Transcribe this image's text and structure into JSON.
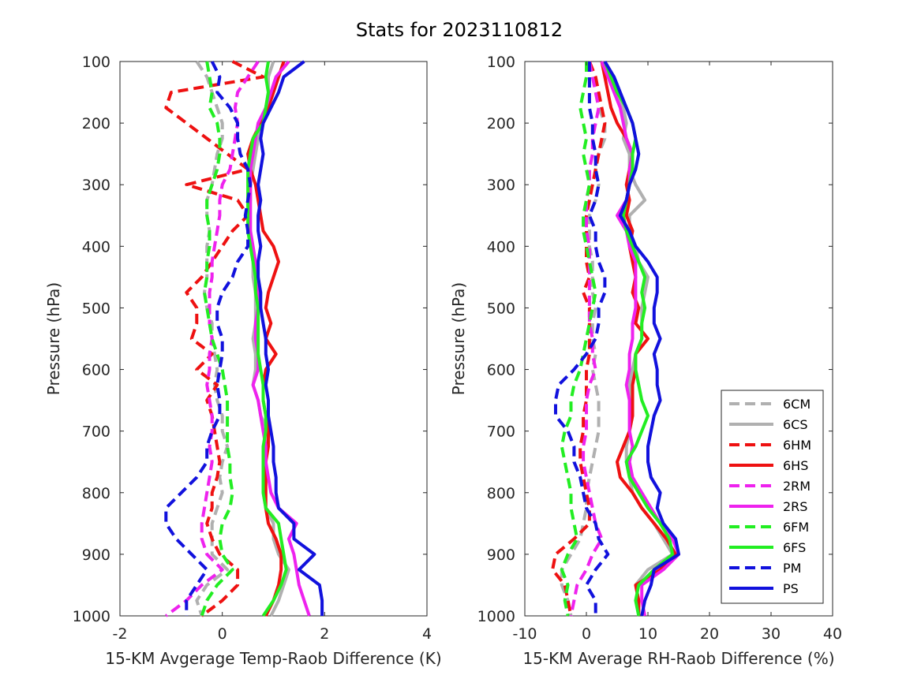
{
  "figure_title": "Stats for 2023110812",
  "legend_colors": {
    "gray": "#b0b0b0",
    "red": "#ee1111",
    "magenta": "#ee22ee",
    "green": "#22ee22",
    "blue": "#1111dd"
  },
  "chart_data": [
    {
      "type": "line",
      "xlabel": "15-KM Avgerage Temp-Raob Difference (K)",
      "ylabel": "Pressure (hPa)",
      "xlim": [
        -2,
        4
      ],
      "ylim": [
        1000,
        100
      ],
      "y_reversed": true,
      "xticks": [
        -2,
        0,
        2,
        4
      ],
      "yticks": [
        100,
        200,
        300,
        400,
        500,
        600,
        700,
        800,
        900,
        1000
      ],
      "grid": false,
      "y": [
        100,
        125,
        150,
        175,
        200,
        225,
        250,
        275,
        300,
        325,
        350,
        375,
        400,
        425,
        450,
        475,
        500,
        525,
        550,
        575,
        600,
        625,
        650,
        675,
        700,
        725,
        750,
        775,
        800,
        825,
        850,
        875,
        900,
        925,
        950,
        975,
        1000
      ],
      "series": [
        {
          "name": "6CM",
          "color": "#b0b0b0",
          "dash": true,
          "x": [
            -0.5,
            -0.3,
            -0.2,
            -0.1,
            0.0,
            0.0,
            -0.1,
            -0.15,
            -0.2,
            -0.3,
            -0.3,
            -0.25,
            -0.3,
            -0.3,
            -0.3,
            -0.35,
            -0.3,
            -0.2,
            -0.2,
            -0.15,
            -0.1,
            -0.15,
            -0.1,
            0.0,
            0.0,
            0.1,
            0.0,
            -0.05,
            0.0,
            -0.1,
            -0.2,
            -0.2,
            -0.2,
            0.1,
            -0.3,
            -0.5,
            -0.4
          ]
        },
        {
          "name": "6CS",
          "color": "#b0b0b0",
          "dash": false,
          "x": [
            1.0,
            0.9,
            0.9,
            0.85,
            0.8,
            0.7,
            0.65,
            0.6,
            0.55,
            0.55,
            0.5,
            0.55,
            0.55,
            0.6,
            0.6,
            0.65,
            0.65,
            0.65,
            0.6,
            0.65,
            0.65,
            0.6,
            0.7,
            0.75,
            0.9,
            0.85,
            0.85,
            0.8,
            0.8,
            0.85,
            1.0,
            1.0,
            1.1,
            1.3,
            1.2,
            1.1,
            0.95
          ]
        },
        {
          "name": "6HM",
          "color": "#ee1111",
          "dash": true,
          "x": [
            0.2,
            0.8,
            -1.0,
            -1.1,
            -0.7,
            -0.3,
            0.1,
            0.5,
            -0.7,
            0.3,
            0.5,
            0.2,
            0.0,
            -0.2,
            -0.4,
            -0.7,
            -0.5,
            -0.5,
            -0.6,
            -0.2,
            -0.5,
            -0.1,
            -0.3,
            -0.2,
            -0.15,
            -0.1,
            -0.05,
            -0.1,
            -0.2,
            -0.2,
            -0.3,
            -0.2,
            -0.05,
            0.3,
            0.3,
            0.0,
            -0.4
          ]
        },
        {
          "name": "6HS",
          "color": "#ee1111",
          "dash": false,
          "x": [
            1.2,
            1.1,
            1.0,
            0.9,
            0.75,
            0.6,
            0.5,
            0.55,
            0.65,
            0.7,
            0.75,
            0.8,
            1.0,
            1.1,
            1.0,
            0.9,
            0.85,
            0.95,
            0.85,
            1.05,
            0.85,
            0.8,
            0.8,
            0.85,
            0.9,
            0.9,
            0.85,
            0.85,
            0.85,
            0.85,
            0.9,
            1.05,
            1.15,
            1.15,
            1.1,
            1.0,
            0.85
          ]
        },
        {
          "name": "2RM",
          "color": "#ee22ee",
          "dash": true,
          "x": [
            0.7,
            0.5,
            0.3,
            0.25,
            0.3,
            0.25,
            0.2,
            0.15,
            0.0,
            -0.05,
            -0.05,
            -0.1,
            -0.15,
            -0.2,
            -0.2,
            -0.25,
            -0.25,
            -0.25,
            -0.2,
            -0.25,
            -0.25,
            -0.3,
            -0.25,
            -0.2,
            -0.2,
            -0.25,
            -0.2,
            -0.25,
            -0.3,
            -0.35,
            -0.4,
            -0.4,
            -0.3,
            0.0,
            -0.4,
            -0.7,
            -1.1
          ]
        },
        {
          "name": "2RS",
          "color": "#ee22ee",
          "dash": false,
          "x": [
            1.3,
            1.05,
            0.95,
            0.85,
            0.7,
            0.65,
            0.6,
            0.55,
            0.55,
            0.55,
            0.55,
            0.55,
            0.6,
            0.65,
            0.7,
            0.7,
            0.7,
            0.65,
            0.65,
            0.7,
            0.7,
            0.6,
            0.7,
            0.75,
            0.8,
            0.85,
            0.85,
            0.9,
            0.95,
            1.1,
            1.45,
            1.3,
            1.4,
            1.45,
            1.5,
            1.6,
            1.7
          ]
        },
        {
          "name": "6FM",
          "color": "#22ee22",
          "dash": true,
          "x": [
            -0.3,
            -0.25,
            -0.2,
            -0.25,
            -0.1,
            -0.05,
            -0.05,
            -0.1,
            -0.2,
            -0.3,
            -0.3,
            -0.25,
            -0.25,
            -0.3,
            -0.3,
            -0.35,
            -0.3,
            -0.25,
            -0.2,
            -0.1,
            0.0,
            0.05,
            0.1,
            0.1,
            0.1,
            0.1,
            0.15,
            0.15,
            0.2,
            0.15,
            0.0,
            -0.05,
            0.0,
            0.2,
            -0.1,
            -0.3,
            -0.4
          ]
        },
        {
          "name": "6FS",
          "color": "#22ee22",
          "dash": false,
          "x": [
            0.9,
            0.85,
            0.9,
            0.85,
            0.8,
            0.6,
            0.55,
            0.5,
            0.5,
            0.5,
            0.5,
            0.5,
            0.55,
            0.6,
            0.65,
            0.65,
            0.7,
            0.7,
            0.7,
            0.7,
            0.75,
            0.8,
            0.8,
            0.85,
            0.85,
            0.8,
            0.8,
            0.8,
            0.8,
            0.85,
            1.1,
            1.15,
            1.2,
            1.25,
            1.15,
            1.0,
            0.8
          ]
        },
        {
          "name": "PM",
          "color": "#1111dd",
          "dash": true,
          "x": [
            -0.2,
            -0.05,
            -0.1,
            0.15,
            0.3,
            0.3,
            0.35,
            0.5,
            0.55,
            0.5,
            0.45,
            0.5,
            0.5,
            0.3,
            0.2,
            0.0,
            -0.1,
            -0.1,
            0.0,
            0.0,
            -0.05,
            -0.1,
            -0.05,
            -0.05,
            -0.2,
            -0.3,
            -0.3,
            -0.5,
            -0.8,
            -1.1,
            -1.1,
            -0.9,
            -0.6,
            -0.3,
            -0.5,
            -0.7,
            -0.7
          ]
        },
        {
          "name": "PS",
          "color": "#1111dd",
          "dash": false,
          "x": [
            1.6,
            1.2,
            1.1,
            0.95,
            0.8,
            0.75,
            0.8,
            0.75,
            0.7,
            0.75,
            0.7,
            0.7,
            0.75,
            0.7,
            0.7,
            0.75,
            0.75,
            0.8,
            0.85,
            0.85,
            0.9,
            0.85,
            0.9,
            0.9,
            0.95,
            1.0,
            1.0,
            1.05,
            1.05,
            1.1,
            1.4,
            1.4,
            1.8,
            1.5,
            1.9,
            1.95,
            1.95
          ]
        }
      ]
    },
    {
      "type": "line",
      "xlabel": "15-KM Average RH-Raob Difference (%)",
      "ylabel": "Pressure (hPa)",
      "xlim": [
        -10,
        40
      ],
      "ylim": [
        1000,
        100
      ],
      "y_reversed": true,
      "xticks": [
        -10,
        0,
        10,
        20,
        30,
        40
      ],
      "yticks": [
        100,
        200,
        300,
        400,
        500,
        600,
        700,
        800,
        900,
        1000
      ],
      "grid": false,
      "legend_position": "lower-right",
      "y": [
        100,
        125,
        150,
        175,
        200,
        225,
        250,
        275,
        300,
        325,
        350,
        375,
        400,
        425,
        450,
        475,
        500,
        525,
        550,
        575,
        600,
        625,
        650,
        675,
        700,
        725,
        750,
        775,
        800,
        825,
        850,
        875,
        900,
        925,
        950,
        975,
        1000
      ],
      "series": [
        {
          "name": "6CM",
          "color": "#b0b0b0",
          "dash": true,
          "x": [
            0.5,
            1.0,
            1.5,
            2.0,
            3.0,
            3.0,
            2.0,
            1.5,
            2.0,
            1.5,
            0.5,
            0.5,
            0.5,
            1.0,
            1.0,
            1.0,
            1.5,
            1.0,
            1.0,
            1.5,
            1.0,
            1.5,
            2.0,
            2.0,
            2.0,
            1.5,
            1.0,
            0.5,
            0.0,
            0.0,
            -0.5,
            -1.0,
            -2.5,
            -4.0,
            -4.0,
            -3.0,
            -2.5
          ]
        },
        {
          "name": "6CS",
          "color": "#b0b0b0",
          "dash": false,
          "x": [
            3.0,
            3.5,
            5.0,
            6.0,
            6.5,
            6.0,
            7.0,
            7.0,
            8.0,
            9.5,
            7.0,
            7.0,
            8.0,
            8.5,
            10.0,
            9.5,
            9.0,
            9.0,
            9.0,
            8.0,
            7.5,
            7.0,
            7.5,
            7.5,
            7.0,
            6.5,
            6.5,
            7.0,
            7.5,
            9.0,
            11.0,
            12.5,
            14.0,
            10.0,
            8.0,
            8.5,
            8.5
          ]
        },
        {
          "name": "6HM",
          "color": "#ee1111",
          "dash": true,
          "x": [
            0.5,
            1.5,
            2.0,
            2.5,
            3.0,
            2.5,
            2.0,
            1.5,
            1.0,
            0.5,
            0.0,
            0.0,
            0.0,
            0.0,
            0.5,
            -0.5,
            0.5,
            0.5,
            0.5,
            0.5,
            0.0,
            0.0,
            0.0,
            -0.5,
            -0.5,
            -1.0,
            -1.0,
            -0.5,
            0.0,
            0.5,
            0.5,
            -2.0,
            -5.0,
            -5.5,
            -3.5,
            -3.0,
            -2.5
          ]
        },
        {
          "name": "6HS",
          "color": "#ee1111",
          "dash": false,
          "x": [
            2.5,
            3.0,
            3.5,
            4.0,
            5.0,
            6.5,
            7.5,
            7.0,
            6.5,
            7.0,
            6.5,
            7.5,
            7.0,
            7.5,
            8.0,
            7.5,
            8.5,
            8.0,
            10.0,
            8.0,
            8.0,
            7.5,
            7.5,
            7.5,
            7.0,
            6.0,
            5.0,
            5.5,
            7.5,
            9.0,
            11.0,
            13.0,
            14.5,
            12.0,
            8.0,
            8.5,
            8.5
          ]
        },
        {
          "name": "2RM",
          "color": "#ee22ee",
          "dash": true,
          "x": [
            0.5,
            1.0,
            1.5,
            2.0,
            1.5,
            1.0,
            1.0,
            0.5,
            0.5,
            0.0,
            0.0,
            0.0,
            0.5,
            0.5,
            0.5,
            0.5,
            0.5,
            0.5,
            1.0,
            1.0,
            1.5,
            0.5,
            0.0,
            0.0,
            0.0,
            -0.5,
            -0.5,
            0.0,
            0.5,
            1.0,
            1.5,
            2.5,
            1.0,
            0.0,
            -1.5,
            -2.0,
            -2.5
          ]
        },
        {
          "name": "2RS",
          "color": "#ee22ee",
          "dash": false,
          "x": [
            2.5,
            3.5,
            4.5,
            5.5,
            6.0,
            6.5,
            7.5,
            7.0,
            7.0,
            6.5,
            5.0,
            6.5,
            7.0,
            8.0,
            8.0,
            8.0,
            8.0,
            7.5,
            7.5,
            7.0,
            7.0,
            6.5,
            7.0,
            7.0,
            7.0,
            7.5,
            7.0,
            7.5,
            9.0,
            10.5,
            12.0,
            14.0,
            15.0,
            12.5,
            9.0,
            9.0,
            9.5
          ]
        },
        {
          "name": "6FM",
          "color": "#22ee22",
          "dash": true,
          "x": [
            0.0,
            0.0,
            -0.5,
            -1.0,
            -0.5,
            0.0,
            -0.5,
            0.0,
            0.5,
            0.0,
            -0.5,
            -0.5,
            0.0,
            0.5,
            1.0,
            1.5,
            1.0,
            0.5,
            0.0,
            -0.5,
            -1.0,
            -2.0,
            -2.5,
            -2.5,
            -3.5,
            -4.0,
            -3.5,
            -3.0,
            -2.5,
            -2.5,
            -2.0,
            -1.5,
            -3.0,
            -4.0,
            -3.0,
            -3.5,
            -3.0
          ]
        },
        {
          "name": "6FS",
          "color": "#22ee22",
          "dash": false,
          "x": [
            3.0,
            4.0,
            5.0,
            6.5,
            7.5,
            8.0,
            7.5,
            7.5,
            7.0,
            6.5,
            6.0,
            6.5,
            7.5,
            8.5,
            9.5,
            9.0,
            9.5,
            9.0,
            9.0,
            8.0,
            8.0,
            8.5,
            9.0,
            10.0,
            9.0,
            8.0,
            6.5,
            7.0,
            8.5,
            10.0,
            12.0,
            13.5,
            14.0,
            11.0,
            8.5,
            8.0,
            8.5
          ]
        },
        {
          "name": "PM",
          "color": "#1111dd",
          "dash": true,
          "x": [
            0.5,
            0.5,
            0.5,
            0.5,
            1.0,
            1.0,
            1.5,
            1.5,
            2.0,
            1.5,
            0.5,
            1.5,
            1.5,
            2.0,
            3.0,
            3.0,
            2.0,
            2.0,
            1.5,
            0.0,
            -2.0,
            -4.5,
            -5.0,
            -5.0,
            -3.0,
            -2.0,
            -2.0,
            -1.0,
            -0.5,
            0.0,
            1.5,
            2.0,
            3.5,
            1.5,
            0.0,
            1.5,
            1.5
          ]
        },
        {
          "name": "PS",
          "color": "#1111dd",
          "dash": false,
          "x": [
            3.0,
            4.5,
            5.5,
            6.5,
            7.5,
            8.0,
            8.5,
            8.0,
            7.0,
            6.5,
            5.5,
            7.0,
            8.0,
            10.0,
            11.5,
            11.5,
            11.0,
            11.0,
            12.0,
            11.0,
            11.5,
            11.5,
            12.0,
            11.0,
            10.5,
            10.0,
            10.0,
            10.5,
            12.0,
            11.5,
            12.5,
            14.5,
            15.0,
            11.0,
            10.5,
            9.5,
            9.0
          ]
        }
      ]
    }
  ]
}
